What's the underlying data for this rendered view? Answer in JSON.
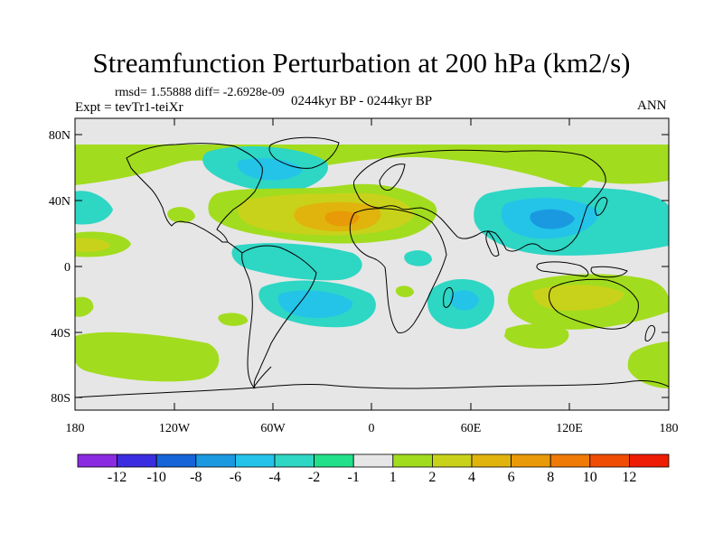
{
  "title": "Streamfunction Perturbation at 200 hPa (km2/s)",
  "stats": "rmsd= 1.55888 diff= -2.6928e-09",
  "expt": "Expt = tevTr1-teiXr",
  "period": "0244kyr BP - 0244kyr BP",
  "season": "ANN",
  "axes": {
    "lat_labels": [
      "80N",
      "40N",
      "0",
      "40S",
      "80S"
    ],
    "lon_labels": [
      "180",
      "120W",
      "60W",
      "0",
      "60E",
      "120E",
      "180"
    ]
  },
  "colorbar": {
    "labels": [
      "-12",
      "-10",
      "-8",
      "-6",
      "-4",
      "-2",
      "-1",
      "1",
      "2",
      "4",
      "6",
      "8",
      "10",
      "12"
    ],
    "colors": [
      "#8a2be2",
      "#3a2de0",
      "#1565d8",
      "#1a99e0",
      "#23c4e8",
      "#2ed6c4",
      "#22e08a",
      "#e6e6e6",
      "#a2dc1e",
      "#c9d21a",
      "#e0b40c",
      "#e89a08",
      "#ef7a06",
      "#f04c04",
      "#ee1c04"
    ]
  },
  "colors": {
    "neutral": "#e6e6e6",
    "coast": "#000000"
  }
}
